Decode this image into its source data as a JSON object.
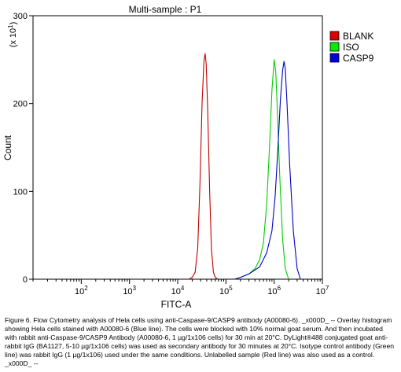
{
  "chart_data": {
    "type": "line",
    "title": "Multi-sample : P1",
    "xlabel": "FITC-A",
    "ylabel": "Count",
    "y_multiplier_label": "(x 10",
    "y_multiplier_exp": "1",
    "x_scale": "log",
    "xlim": [
      10,
      10000000
    ],
    "ylim": [
      0,
      300
    ],
    "x_ticks": [
      {
        "value": 100,
        "base": "10",
        "exp": "2"
      },
      {
        "value": 1000,
        "base": "10",
        "exp": "3"
      },
      {
        "value": 10000,
        "base": "10",
        "exp": "4"
      },
      {
        "value": 100000,
        "base": "10",
        "exp": "5"
      },
      {
        "value": 1000000,
        "base": "10",
        "exp": "6"
      },
      {
        "value": 10000000,
        "base": "10",
        "exp": "7"
      }
    ],
    "y_ticks": [
      "0",
      "100",
      "200",
      "300"
    ],
    "y_tick_values": [
      0,
      100,
      200,
      300
    ],
    "grid": false,
    "legend_position": "right",
    "series": [
      {
        "name": "BLANK",
        "color": "#c00000",
        "legend_color": "#dd0000",
        "points": [
          [
            17000,
            0
          ],
          [
            20000,
            2
          ],
          [
            23000,
            8
          ],
          [
            26000,
            35
          ],
          [
            29000,
            110
          ],
          [
            32000,
            200
          ],
          [
            35000,
            248
          ],
          [
            37000,
            257
          ],
          [
            39000,
            245
          ],
          [
            42000,
            190
          ],
          [
            46000,
            100
          ],
          [
            50000,
            35
          ],
          [
            55000,
            8
          ],
          [
            60000,
            2
          ],
          [
            68000,
            0
          ]
        ]
      },
      {
        "name": "ISO",
        "color": "#00cc00",
        "legend_color": "#00ee00",
        "points": [
          [
            150000,
            0
          ],
          [
            200000,
            2
          ],
          [
            300000,
            6
          ],
          [
            400000,
            12
          ],
          [
            500000,
            22
          ],
          [
            600000,
            42
          ],
          [
            700000,
            85
          ],
          [
            800000,
            150
          ],
          [
            900000,
            215
          ],
          [
            1000000,
            250
          ],
          [
            1080000,
            236
          ],
          [
            1150000,
            200
          ],
          [
            1300000,
            120
          ],
          [
            1500000,
            45
          ],
          [
            1700000,
            12
          ],
          [
            2000000,
            0
          ]
        ]
      },
      {
        "name": "CASP9",
        "color": "#0000cc",
        "legend_color": "#0000dd",
        "points": [
          [
            150000,
            0
          ],
          [
            200000,
            2
          ],
          [
            300000,
            6
          ],
          [
            500000,
            14
          ],
          [
            700000,
            30
          ],
          [
            900000,
            55
          ],
          [
            1050000,
            95
          ],
          [
            1200000,
            150
          ],
          [
            1350000,
            205
          ],
          [
            1500000,
            238
          ],
          [
            1600000,
            248
          ],
          [
            1700000,
            240
          ],
          [
            1850000,
            200
          ],
          [
            2100000,
            130
          ],
          [
            2500000,
            55
          ],
          [
            3000000,
            12
          ],
          [
            3500000,
            0
          ]
        ]
      }
    ]
  },
  "caption": "Figure 6. Flow Cytometry analysis of Hela cells using anti-Caspase-9/CASP9 antibody (A00080-6). _x000D_ -- Overlay histogram showing Hela cells stained with A00080-6 (Blue line). The cells were blocked with 10% normal goat serum. And then incubated with rabbit anti-Caspase-9/CASP9 Antibody (A00080-6, 1 µg/1x106 cells) for 30 min at 20°C. DyLight®488 conjugated goat anti-rabbit IgG (BA1127, 5-10 µg/1x106 cells) was used as secondary antibody for 30 minutes at 20°C. Isotype control antibody (Green line) was rabbit IgG (1 µg/1x106) used under the same conditions. Unlabelled sample (Red line) was also used as a control. _x000D_ --"
}
